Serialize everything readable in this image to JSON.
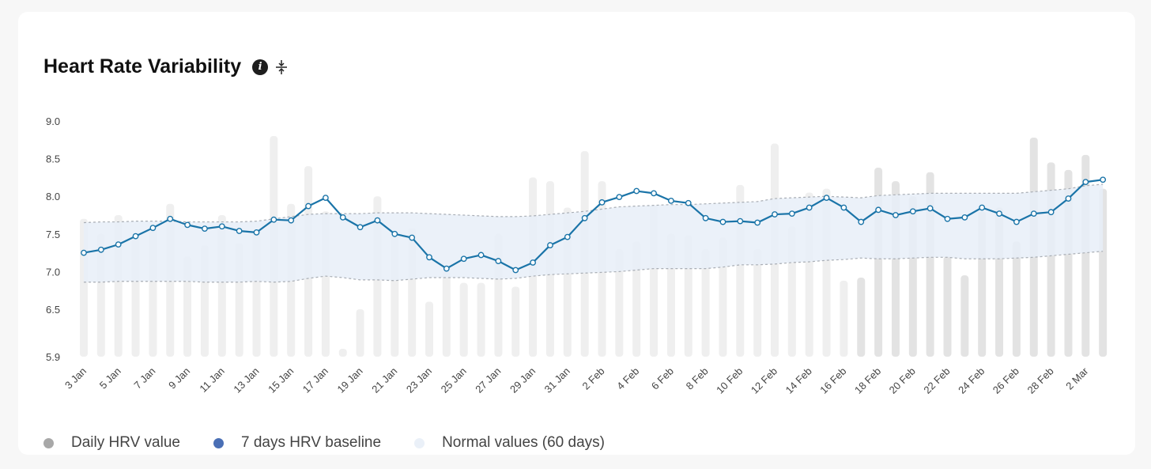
{
  "header": {
    "title": "Heart Rate Variability"
  },
  "icons": {
    "info": "info-icon",
    "collapse": "collapse-vertical-icon"
  },
  "colors": {
    "baseline": "#1a74a8",
    "daily_bar": "#efefef",
    "daily_bar_recent": "#e3e3e3",
    "normal_band": "#e8eef8",
    "legend_daily": "#a8a8a8",
    "legend_baseline": "#4a6fb5",
    "legend_normal": "#eaf0f8"
  },
  "legend": [
    {
      "label": "Daily HRV value"
    },
    {
      "label": "7 days HRV baseline"
    },
    {
      "label": "Normal values (60 days)"
    }
  ],
  "chart_data": {
    "type": "line",
    "title": "Heart Rate Variability",
    "xlabel": "",
    "ylabel": "",
    "ylim": [
      5.9,
      9.0
    ],
    "yticks": [
      "9.0",
      "8.5",
      "8.0",
      "7.5",
      "7.0",
      "6.5",
      "5.9"
    ],
    "xticks": [
      "3 Jan",
      "5 Jan",
      "7 Jan",
      "9 Jan",
      "11 Jan",
      "13 Jan",
      "15 Jan",
      "17 Jan",
      "19 Jan",
      "21 Jan",
      "23 Jan",
      "25 Jan",
      "27 Jan",
      "29 Jan",
      "31 Jan",
      "2 Feb",
      "4 Feb",
      "6 Feb",
      "8 Feb",
      "10 Feb",
      "12 Feb",
      "14 Feb",
      "16 Feb",
      "18 Feb",
      "20 Feb",
      "22 Feb",
      "24 Feb",
      "26 Feb",
      "28 Feb",
      "2 Mar"
    ],
    "x": [
      "3 Jan",
      "4 Jan",
      "5 Jan",
      "6 Jan",
      "7 Jan",
      "8 Jan",
      "9 Jan",
      "10 Jan",
      "11 Jan",
      "12 Jan",
      "13 Jan",
      "14 Jan",
      "15 Jan",
      "16 Jan",
      "17 Jan",
      "18 Jan",
      "19 Jan",
      "20 Jan",
      "21 Jan",
      "22 Jan",
      "23 Jan",
      "24 Jan",
      "25 Jan",
      "26 Jan",
      "27 Jan",
      "28 Jan",
      "29 Jan",
      "30 Jan",
      "31 Jan",
      "1 Feb",
      "2 Feb",
      "3 Feb",
      "4 Feb",
      "5 Feb",
      "6 Feb",
      "7 Feb",
      "8 Feb",
      "9 Feb",
      "10 Feb",
      "11 Feb",
      "12 Feb",
      "13 Feb",
      "14 Feb",
      "15 Feb",
      "16 Feb",
      "17 Feb",
      "18 Feb",
      "19 Feb",
      "20 Feb",
      "21 Feb",
      "22 Feb",
      "23 Feb",
      "24 Feb",
      "25 Feb",
      "26 Feb",
      "27 Feb",
      "28 Feb",
      "1 Mar",
      "2 Mar",
      "3 Mar"
    ],
    "series": [
      {
        "name": "Daily HRV value",
        "type": "bar",
        "values": [
          7.7,
          7.5,
          7.75,
          7.45,
          7.6,
          7.9,
          7.2,
          7.35,
          7.75,
          7.38,
          7.55,
          8.8,
          7.9,
          8.4,
          7.8,
          6.0,
          6.5,
          8.0,
          7.5,
          7.58,
          6.6,
          7.0,
          6.85,
          6.85,
          7.5,
          6.8,
          8.25,
          8.2,
          7.85,
          8.6,
          8.2,
          7.3,
          7.4,
          7.88,
          7.5,
          7.48,
          7.3,
          7.45,
          8.15,
          7.3,
          8.7,
          7.6,
          8.05,
          8.1,
          6.88,
          6.92,
          8.38,
          8.2,
          8.0,
          8.32,
          7.2,
          6.95,
          7.8,
          7.85,
          7.4,
          8.78,
          8.45,
          8.35,
          8.55,
          8.1
        ]
      },
      {
        "name": "7 days HRV baseline",
        "type": "line",
        "values": [
          7.25,
          7.29,
          7.36,
          7.47,
          7.58,
          7.7,
          7.62,
          7.57,
          7.6,
          7.54,
          7.52,
          7.69,
          7.68,
          7.87,
          7.98,
          7.72,
          7.59,
          7.68,
          7.5,
          7.45,
          7.19,
          7.04,
          7.17,
          7.22,
          7.14,
          7.02,
          7.12,
          7.35,
          7.46,
          7.71,
          7.92,
          7.99,
          8.07,
          8.04,
          7.94,
          7.91,
          7.71,
          7.66,
          7.67,
          7.65,
          7.76,
          7.77,
          7.85,
          7.98,
          7.85,
          7.66,
          7.82,
          7.75,
          7.8,
          7.84,
          7.7,
          7.72,
          7.85,
          7.77,
          7.66,
          7.77,
          7.79,
          7.97,
          8.19,
          8.22
        ]
      },
      {
        "name": "Normal values (60 days)",
        "type": "area",
        "upper": [
          7.65,
          7.66,
          7.66,
          7.67,
          7.67,
          7.67,
          7.66,
          7.66,
          7.66,
          7.66,
          7.67,
          7.7,
          7.73,
          7.76,
          7.77,
          7.77,
          7.77,
          7.78,
          7.78,
          7.78,
          7.77,
          7.76,
          7.75,
          7.74,
          7.73,
          7.73,
          7.74,
          7.76,
          7.78,
          7.8,
          7.83,
          7.86,
          7.87,
          7.88,
          7.89,
          7.89,
          7.9,
          7.91,
          7.92,
          7.93,
          7.97,
          7.98,
          7.99,
          8.0,
          7.99,
          7.98,
          8.01,
          8.02,
          8.03,
          8.04,
          8.04,
          8.04,
          8.04,
          8.04,
          8.04,
          8.06,
          8.08,
          8.1,
          8.14,
          8.16
        ],
        "lower": [
          6.86,
          6.86,
          6.87,
          6.87,
          6.87,
          6.87,
          6.87,
          6.86,
          6.86,
          6.86,
          6.87,
          6.86,
          6.87,
          6.91,
          6.94,
          6.92,
          6.89,
          6.89,
          6.88,
          6.9,
          6.92,
          6.92,
          6.92,
          6.91,
          6.9,
          6.91,
          6.94,
          6.96,
          6.97,
          6.98,
          6.99,
          7.0,
          7.02,
          7.04,
          7.04,
          7.04,
          7.04,
          7.06,
          7.09,
          7.09,
          7.1,
          7.12,
          7.13,
          7.15,
          7.16,
          7.18,
          7.17,
          7.17,
          7.18,
          7.19,
          7.19,
          7.17,
          7.17,
          7.17,
          7.18,
          7.19,
          7.21,
          7.23,
          7.25,
          7.27
        ]
      }
    ],
    "grid": false,
    "legend_position": "bottom-left"
  }
}
